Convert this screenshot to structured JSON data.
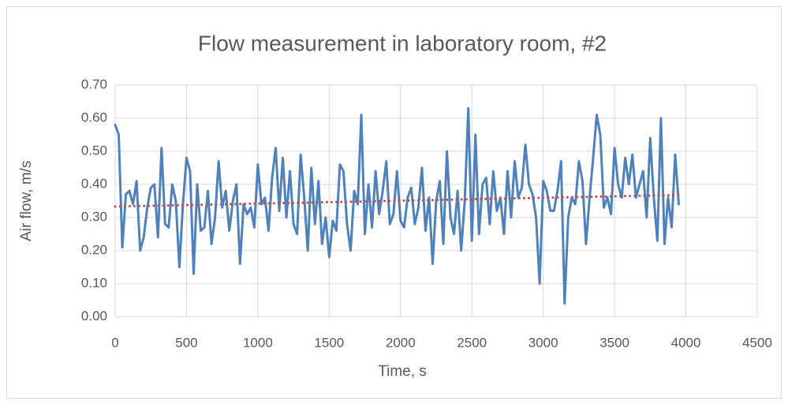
{
  "chart_data": {
    "type": "line",
    "title": "Flow measurement in laboratory room, #2",
    "xlabel": "Time, s",
    "ylabel": "Air flow, m/s",
    "series": [
      {
        "color": "#4f81bd",
        "style": "solid",
        "x": [
          0,
          25,
          50,
          75,
          100,
          125,
          150,
          175,
          200,
          225,
          250,
          275,
          300,
          325,
          350,
          375,
          400,
          425,
          450,
          475,
          500,
          525,
          550,
          575,
          600,
          625,
          650,
          675,
          700,
          725,
          750,
          775,
          800,
          825,
          850,
          875,
          900,
          925,
          950,
          975,
          1000,
          1025,
          1050,
          1075,
          1100,
          1125,
          1150,
          1175,
          1200,
          1225,
          1250,
          1275,
          1300,
          1325,
          1350,
          1375,
          1400,
          1425,
          1450,
          1475,
          1500,
          1525,
          1550,
          1575,
          1600,
          1625,
          1650,
          1675,
          1700,
          1725,
          1750,
          1775,
          1800,
          1825,
          1850,
          1875,
          1900,
          1925,
          1950,
          1975,
          2000,
          2025,
          2050,
          2075,
          2100,
          2125,
          2150,
          2175,
          2200,
          2225,
          2250,
          2275,
          2300,
          2325,
          2350,
          2375,
          2400,
          2425,
          2450,
          2475,
          2500,
          2525,
          2550,
          2575,
          2600,
          2625,
          2650,
          2675,
          2700,
          2725,
          2750,
          2775,
          2800,
          2825,
          2850,
          2875,
          2900,
          2925,
          2950,
          2975,
          3000,
          3025,
          3050,
          3075,
          3100,
          3125,
          3150,
          3175,
          3200,
          3225,
          3250,
          3275,
          3300,
          3325,
          3350,
          3375,
          3400,
          3425,
          3450,
          3475,
          3500,
          3525,
          3550,
          3575,
          3600,
          3625,
          3650,
          3675,
          3700,
          3725,
          3750,
          3775,
          3800,
          3825,
          3850,
          3875,
          3900,
          3925,
          3950
        ],
        "values": [
          0.58,
          0.55,
          0.21,
          0.37,
          0.38,
          0.34,
          0.41,
          0.2,
          0.24,
          0.33,
          0.39,
          0.4,
          0.24,
          0.51,
          0.28,
          0.27,
          0.4,
          0.35,
          0.15,
          0.34,
          0.48,
          0.44,
          0.13,
          0.4,
          0.26,
          0.27,
          0.38,
          0.22,
          0.3,
          0.47,
          0.33,
          0.38,
          0.26,
          0.35,
          0.4,
          0.16,
          0.34,
          0.31,
          0.33,
          0.27,
          0.46,
          0.34,
          0.36,
          0.26,
          0.42,
          0.51,
          0.32,
          0.48,
          0.3,
          0.44,
          0.28,
          0.25,
          0.49,
          0.36,
          0.2,
          0.45,
          0.28,
          0.41,
          0.22,
          0.3,
          0.18,
          0.29,
          0.26,
          0.46,
          0.44,
          0.28,
          0.2,
          0.38,
          0.34,
          0.61,
          0.25,
          0.4,
          0.27,
          0.44,
          0.31,
          0.38,
          0.47,
          0.28,
          0.31,
          0.44,
          0.29,
          0.27,
          0.36,
          0.39,
          0.28,
          0.33,
          0.45,
          0.26,
          0.36,
          0.16,
          0.35,
          0.41,
          0.22,
          0.5,
          0.3,
          0.25,
          0.38,
          0.2,
          0.35,
          0.63,
          0.23,
          0.55,
          0.25,
          0.4,
          0.42,
          0.28,
          0.44,
          0.32,
          0.36,
          0.25,
          0.44,
          0.3,
          0.47,
          0.36,
          0.39,
          0.52,
          0.4,
          0.37,
          0.3,
          0.1,
          0.41,
          0.38,
          0.32,
          0.32,
          0.38,
          0.47,
          0.04,
          0.3,
          0.36,
          0.34,
          0.47,
          0.41,
          0.22,
          0.36,
          0.48,
          0.61,
          0.55,
          0.33,
          0.36,
          0.31,
          0.51,
          0.4,
          0.36,
          0.48,
          0.4,
          0.49,
          0.36,
          0.4,
          0.44,
          0.3,
          0.54,
          0.36,
          0.23,
          0.6,
          0.22,
          0.36,
          0.27,
          0.49,
          0.34
        ]
      },
      {
        "color": "#c0504d",
        "style": "dotted",
        "x": [
          0,
          3950
        ],
        "values": [
          0.333,
          0.368
        ]
      }
    ],
    "xlim": [
      0,
      4500
    ],
    "xticks": [
      0,
      500,
      1000,
      1500,
      2000,
      2500,
      3000,
      3500,
      4000,
      4500
    ],
    "ylim": [
      0,
      0.7
    ],
    "yticks": [
      {
        "value": 0,
        "label": "0.00"
      },
      {
        "value": 0.1,
        "label": "0.10"
      },
      {
        "value": 0.2,
        "label": "0.20"
      },
      {
        "value": 0.3,
        "label": "0.30"
      },
      {
        "value": 0.4,
        "label": "0.40"
      },
      {
        "value": 0.5,
        "label": "0.50"
      },
      {
        "value": 0.6,
        "label": "0.60"
      },
      {
        "value": 0.7,
        "label": "0.70"
      }
    ],
    "grid": true
  }
}
